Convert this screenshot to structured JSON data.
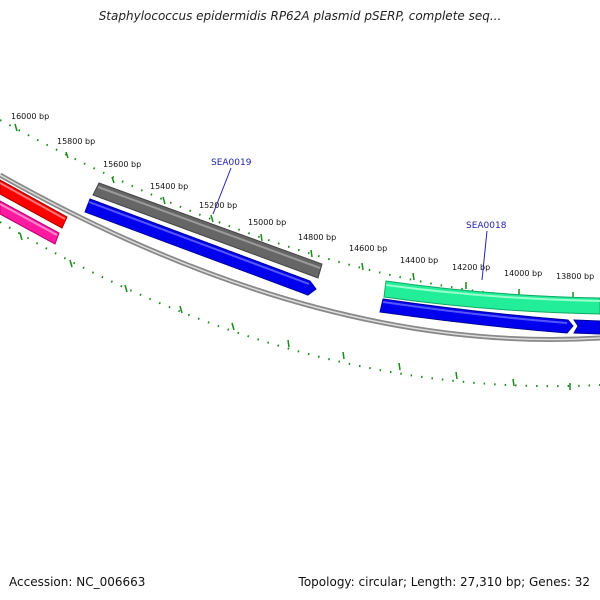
{
  "title": "Staphylococcus epidermidis RP62A plasmid pSERP, complete seq...",
  "footer": {
    "accession": "Accession: NC_006663",
    "summary": "Topology: circular; Length: 27,310 bp; Genes: 32"
  },
  "ticks": [
    {
      "label": "16000 bp"
    },
    {
      "label": "15800 bp"
    },
    {
      "label": "15600 bp"
    },
    {
      "label": "15400 bp"
    },
    {
      "label": "15200 bp"
    },
    {
      "label": "15000 bp"
    },
    {
      "label": "14800 bp"
    },
    {
      "label": "14600 bp"
    },
    {
      "label": "14400 bp"
    },
    {
      "label": "14200 bp"
    },
    {
      "label": "14000 bp"
    },
    {
      "label": "13800 bp"
    }
  ],
  "genes": [
    {
      "label": "SEA0019"
    },
    {
      "label": "SEA0018"
    }
  ],
  "colors": {
    "backbone": "#888888",
    "tick": "#1a8a1a",
    "forward_gene": "#0000ee",
    "feature_dark": "#666666",
    "feature_teal": "#22ee99",
    "feature_red": "#ff0000",
    "feature_pink": "#ff1aa0",
    "gene_label": "#2222aa"
  }
}
